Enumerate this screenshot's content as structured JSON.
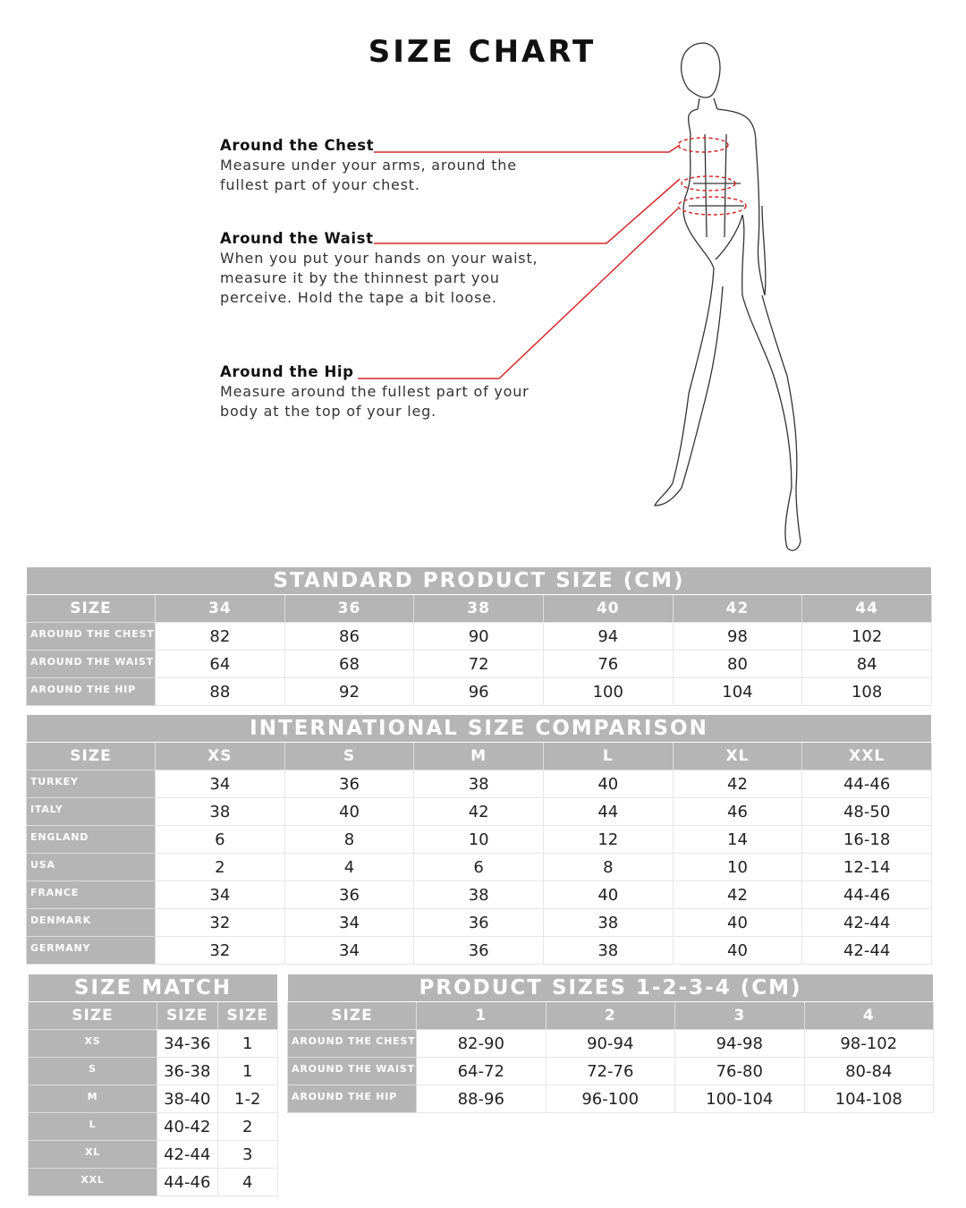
{
  "title": "SIZE CHART",
  "accent_color": "#d42a2a",
  "header_color": "#b5b5b5",
  "measurements": [
    {
      "label": "Around the Chest",
      "desc": "Measure under your arms, around the fullest part of your chest."
    },
    {
      "label": "Around the Waist",
      "desc": "When you put your hands on your waist, measure it by the thinnest part you perceive. Hold the tape a bit loose."
    },
    {
      "label": "Around the Hip",
      "desc": "Measure around the fullest part of your body at the top of your leg."
    }
  ],
  "tables": {
    "standard": {
      "caption": "STANDARD PRODUCT SIZE (CM)",
      "headers": [
        "SIZE",
        "34",
        "36",
        "38",
        "40",
        "42",
        "44"
      ],
      "rows": [
        [
          "AROUND THE CHEST",
          "82",
          "86",
          "90",
          "94",
          "98",
          "102"
        ],
        [
          "AROUND THE WAIST",
          "64",
          "68",
          "72",
          "76",
          "80",
          "84"
        ],
        [
          "AROUND THE HIP",
          "88",
          "92",
          "96",
          "100",
          "104",
          "108"
        ]
      ]
    },
    "international": {
      "caption": "INTERNATIONAL SIZE COMPARISON",
      "headers": [
        "SIZE",
        "XS",
        "S",
        "M",
        "L",
        "XL",
        "XXL"
      ],
      "rows": [
        [
          "TURKEY",
          "34",
          "36",
          "38",
          "40",
          "42",
          "44-46"
        ],
        [
          "ITALY",
          "38",
          "40",
          "42",
          "44",
          "46",
          "48-50"
        ],
        [
          "ENGLAND",
          "6",
          "8",
          "10",
          "12",
          "14",
          "16-18"
        ],
        [
          "USA",
          "2",
          "4",
          "6",
          "8",
          "10",
          "12-14"
        ],
        [
          "FRANCE",
          "34",
          "36",
          "38",
          "40",
          "42",
          "44-46"
        ],
        [
          "DENMARK",
          "32",
          "34",
          "36",
          "38",
          "40",
          "42-44"
        ],
        [
          "GERMANY",
          "32",
          "34",
          "36",
          "38",
          "40",
          "42-44"
        ]
      ]
    },
    "size_match": {
      "caption": "SIZE MATCH",
      "headers": [
        "SIZE",
        "SIZE",
        "SIZE"
      ],
      "rows": [
        [
          "XS",
          "34-36",
          "1"
        ],
        [
          "S",
          "36-38",
          "1"
        ],
        [
          "M",
          "38-40",
          "1-2"
        ],
        [
          "L",
          "40-42",
          "2"
        ],
        [
          "XL",
          "42-44",
          "3"
        ],
        [
          "XXL",
          "44-46",
          "4"
        ]
      ]
    },
    "product_sizes": {
      "caption": "PRODUCT SIZES 1-2-3-4 (CM)",
      "headers": [
        "SIZE",
        "1",
        "2",
        "3",
        "4"
      ],
      "rows": [
        [
          "AROUND THE CHEST",
          "82-90",
          "90-94",
          "94-98",
          "98-102"
        ],
        [
          "AROUND THE WAIST",
          "64-72",
          "72-76",
          "76-80",
          "80-84"
        ],
        [
          "AROUND THE HIP",
          "88-96",
          "96-100",
          "100-104",
          "104-108"
        ]
      ]
    }
  }
}
